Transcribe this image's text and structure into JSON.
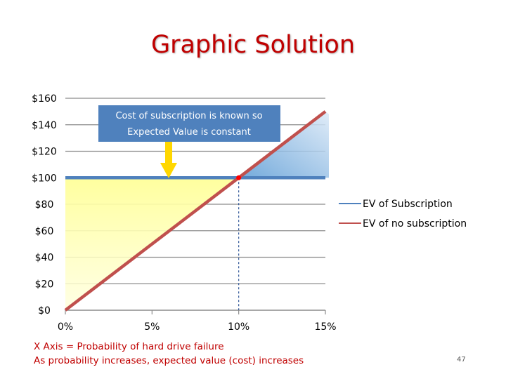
{
  "slide": {
    "title": "Graphic Solution",
    "footnote_line1": "X Axis = Probability of hard drive failure",
    "footnote_line2": "As probability increases, expected value (cost) increases",
    "slide_number": "47"
  },
  "chart_data": {
    "type": "line",
    "x": [
      0,
      15
    ],
    "x_ticks": [
      0,
      5,
      10,
      15
    ],
    "x_tick_labels": [
      "0%",
      "5%",
      "10%",
      "15%"
    ],
    "xlim": [
      0,
      15
    ],
    "y_ticks": [
      0,
      20,
      40,
      60,
      80,
      100,
      120,
      140,
      160
    ],
    "y_tick_labels": [
      "$0",
      "$20",
      "$40",
      "$60",
      "$80",
      "$100",
      "$120",
      "$140",
      "$160"
    ],
    "ylim": [
      0,
      160
    ],
    "grid": "horizontal",
    "series": [
      {
        "name": "EV of Subscription",
        "x": [
          0,
          15
        ],
        "values": [
          100,
          100
        ],
        "color": "#4f81bd"
      },
      {
        "name": "EV of no subscription",
        "x": [
          0,
          15
        ],
        "values": [
          0,
          150
        ],
        "color": "#c0504d"
      }
    ],
    "intersection": {
      "x": 10,
      "y": 100
    },
    "legend": "right",
    "annotation": {
      "line1": "Cost of subscription is known so",
      "line2": "Expected Value is constant",
      "box_color": "#4f81bd",
      "arrow_color": "#ffd700"
    },
    "shading": {
      "below_color": "#ffff99",
      "above_color": "#9cc3e6"
    }
  }
}
